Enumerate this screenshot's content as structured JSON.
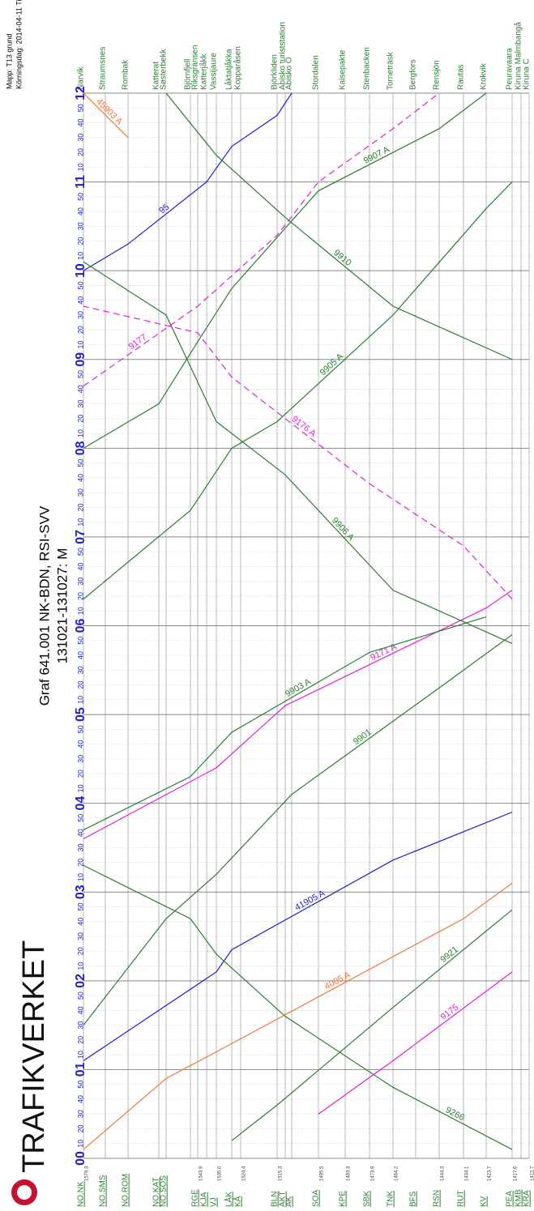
{
  "header": {
    "brand": "TRAFIKVERKET",
    "title": "Graf 641.001 NK-BDN, RSI-SVV",
    "subtitle": "131021-131027: M",
    "map": "Mapp: T13 grund",
    "date": "Körningsdag: 2014-04-11  Tidpunkt: 09:45"
  },
  "chart_data": {
    "type": "train-graph",
    "hours": [
      "00",
      "01",
      "02",
      "03",
      "04",
      "05",
      "06",
      "07",
      "08",
      "09",
      "10",
      "11",
      "12"
    ],
    "minutes": [
      "10",
      "20",
      "30",
      "40",
      "50"
    ],
    "stations": [
      {
        "name": "Narvik",
        "code": "NO.NK",
        "km": "1579.3"
      },
      {
        "name": "Straumsnes",
        "code": "NO.SMS"
      },
      {
        "name": "Rombak",
        "code": "NO.ROM"
      },
      {
        "name": "Katterat",
        "code": "NO.KAT"
      },
      {
        "name": "Søsterbekk",
        "code": "NO.SOS"
      },
      {
        "name": "Björnfjell"
      },
      {
        "name": "Riksgränsen",
        "code": "RGE",
        "km": "1543.9"
      },
      {
        "name": "Katterjåkk",
        "code": "KJA"
      },
      {
        "name": "Vassijaure",
        "code": "VJ",
        "km": "1535.0"
      },
      {
        "name": "Låktatjåkka",
        "code": "LÅK"
      },
      {
        "name": "Kopparåsen",
        "code": "KÅ",
        "km": "1524.4"
      },
      {
        "name": "Björkliden",
        "code": "BLN",
        "km": "1515.3"
      },
      {
        "name": "Abisko turiststation",
        "code": "AKT"
      },
      {
        "name": "Abisko Ö",
        "code": "AK"
      },
      {
        "name": "Stordalen",
        "code": "SOA",
        "km": "1495.5"
      },
      {
        "name": "Kaisepakte",
        "code": "KPE",
        "km": "1483.3"
      },
      {
        "name": "Stenbacken",
        "code": "SBK",
        "km": "1473.9"
      },
      {
        "name": "Torneträsk",
        "code": "TNK",
        "km": "1464.2"
      },
      {
        "name": "Bergfors",
        "code": "BFS"
      },
      {
        "name": "Rensjön",
        "code": "RSN",
        "km": "1444.3"
      },
      {
        "name": "Rautas",
        "code": "RUT",
        "km": "1434.1"
      },
      {
        "name": "Krokvik",
        "code": "KV",
        "km": "1423.7"
      },
      {
        "name": "Peuravaara",
        "code": "PEA",
        "km": "1417.6"
      },
      {
        "name": "Kiruna Malmbangå",
        "code": "KMB"
      },
      {
        "name": "Kiruna C",
        "code": "KRA",
        "km": "1412.7"
      }
    ],
    "trains": [
      {
        "label": "41905 A",
        "color": "#1f1fd0",
        "points": [
          [
            1.1,
            0
          ],
          [
            2.1,
            8
          ],
          [
            2.35,
            9
          ],
          [
            3.36,
            17
          ],
          [
            3.9,
            22
          ]
        ]
      },
      {
        "label": "4005 A",
        "color": "#f07838",
        "points": [
          [
            0.1,
            0
          ],
          [
            0.9,
            4
          ],
          [
            1.2,
            8
          ],
          [
            2.7,
            20
          ],
          [
            3.1,
            22
          ]
        ]
      },
      {
        "label": "9171 A",
        "color": "#e020e0",
        "points": [
          [
            3.6,
            0
          ],
          [
            4.4,
            8
          ],
          [
            5.1,
            12
          ],
          [
            6.2,
            21
          ],
          [
            6.4,
            22
          ]
        ]
      },
      {
        "label": "9903 A",
        "color": "#2e7d32",
        "points": [
          [
            3.7,
            0
          ],
          [
            4.3,
            5
          ],
          [
            4.8,
            9
          ],
          [
            5.7,
            16
          ],
          [
            6.1,
            21
          ]
        ]
      },
      {
        "label": "9901",
        "color": "#2e7d32",
        "points": [
          [
            1.5,
            0
          ],
          [
            2.7,
            4
          ],
          [
            3.2,
            8
          ],
          [
            4.1,
            13
          ],
          [
            5.3,
            19
          ],
          [
            5.9,
            22
          ]
        ]
      },
      {
        "label": "95",
        "color": "#1f1fd0",
        "points": [
          [
            10.0,
            0
          ],
          [
            10.3,
            2
          ],
          [
            11.0,
            7
          ],
          [
            11.4,
            9
          ],
          [
            11.75,
            11
          ],
          [
            12,
            13
          ]
        ]
      },
      {
        "label": "9176 A",
        "color": "#e020e0",
        "dashed": true,
        "points": [
          [
            6.3,
            22
          ],
          [
            6.9,
            20
          ],
          [
            7.6,
            16
          ],
          [
            8.8,
            9
          ],
          [
            9.3,
            6
          ],
          [
            9.6,
            0
          ]
        ]
      },
      {
        "label": "9905 A",
        "color": "#2e7d32",
        "points": [
          [
            6.3,
            0
          ],
          [
            7.3,
            5
          ],
          [
            8.0,
            9
          ],
          [
            8.3,
            11
          ],
          [
            9.5,
            17
          ],
          [
            10.7,
            21
          ],
          [
            11.0,
            22
          ]
        ]
      },
      {
        "label": "9906 A",
        "color": "#2e7d32",
        "points": [
          [
            5.8,
            22
          ],
          [
            6.4,
            17
          ],
          [
            7.7,
            12
          ],
          [
            8.3,
            8
          ],
          [
            9.5,
            4
          ],
          [
            10.1,
            0
          ]
        ]
      },
      {
        "label": "9266",
        "color": "#2e7d32",
        "points": [
          [
            0.1,
            22
          ],
          [
            0.8,
            17
          ],
          [
            1.6,
            12
          ],
          [
            2.3,
            8
          ],
          [
            2.7,
            5
          ],
          [
            3.3,
            0
          ]
        ]
      },
      {
        "label": "9910",
        "color": "#2e7d32",
        "points": [
          [
            9.0,
            22
          ],
          [
            9.6,
            17
          ],
          [
            10.6,
            12
          ],
          [
            11.3,
            8
          ],
          [
            12,
            4
          ]
        ]
      },
      {
        "label": "9907 A",
        "color": "#2e7d32",
        "points": [
          [
            8.0,
            0
          ],
          [
            8.5,
            3
          ],
          [
            9.2,
            6
          ],
          [
            9.8,
            9
          ],
          [
            10.9,
            14
          ],
          [
            11.6,
            19
          ],
          [
            12,
            21
          ]
        ]
      },
      {
        "label": "45903 A",
        "color": "#f07838",
        "points": [
          [
            11.5,
            2
          ],
          [
            12,
            0
          ]
        ]
      },
      {
        "label": "9177",
        "color": "#e020e0",
        "dashed": true,
        "points": [
          [
            8.7,
            0
          ],
          [
            9.6,
            6
          ],
          [
            10.4,
            11
          ],
          [
            11.0,
            14
          ],
          [
            11.6,
            17
          ],
          [
            12,
            19
          ]
        ]
      },
      {
        "label": "9175",
        "color": "#e020e0",
        "points": [
          [
            0.5,
            14
          ],
          [
            1.1,
            17
          ],
          [
            2.1,
            22
          ]
        ]
      },
      {
        "label": "9921",
        "color": "#2e7d32",
        "points": [
          [
            0.2,
            9
          ],
          [
            0.6,
            11
          ],
          [
            1.7,
            17
          ],
          [
            2.8,
            22
          ]
        ]
      }
    ]
  }
}
